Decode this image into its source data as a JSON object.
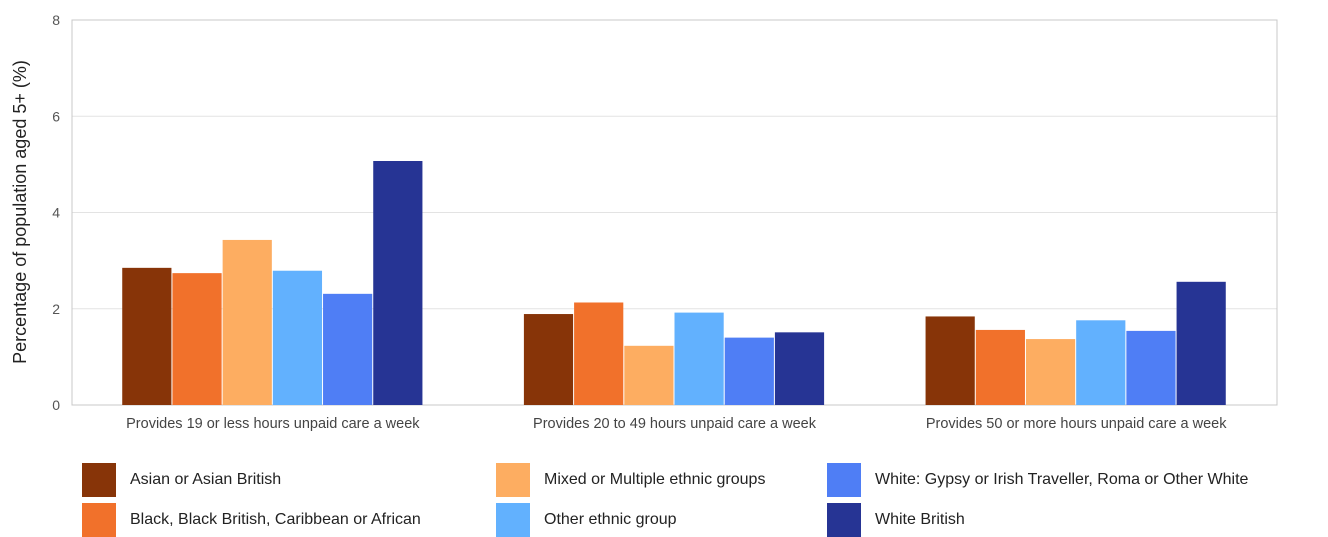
{
  "chart_data": {
    "type": "bar",
    "ylabel": "Percentage of population aged 5+ (%)",
    "ylim": [
      0,
      8
    ],
    "yticks": [
      0,
      2,
      4,
      6,
      8
    ],
    "grid": true,
    "legend_position": "bottom",
    "categories": [
      "Provides 19 or less hours unpaid care a week",
      "Provides 20 to 49 hours unpaid care a week",
      "Provides 50 or more hours unpaid care a week"
    ],
    "series": [
      {
        "name": "Asian or Asian British",
        "color": "#873408",
        "values": [
          2.85,
          1.89,
          1.84
        ]
      },
      {
        "name": "Black, Black British, Caribbean or African",
        "color": "#f1712b",
        "values": [
          2.74,
          2.13,
          1.56
        ]
      },
      {
        "name": "Mixed or Multiple ethnic groups",
        "color": "#fdad61",
        "values": [
          3.43,
          1.23,
          1.37
        ]
      },
      {
        "name": "Other ethnic group",
        "color": "#62b1fe",
        "values": [
          2.79,
          1.92,
          1.76
        ]
      },
      {
        "name": "White: Gypsy or Irish Traveller, Roma or Other White",
        "color": "#4f7ef5",
        "values": [
          2.31,
          1.4,
          1.54
        ]
      },
      {
        "name": "White British",
        "color": "#263494",
        "values": [
          5.07,
          1.51,
          2.56
        ]
      }
    ]
  }
}
